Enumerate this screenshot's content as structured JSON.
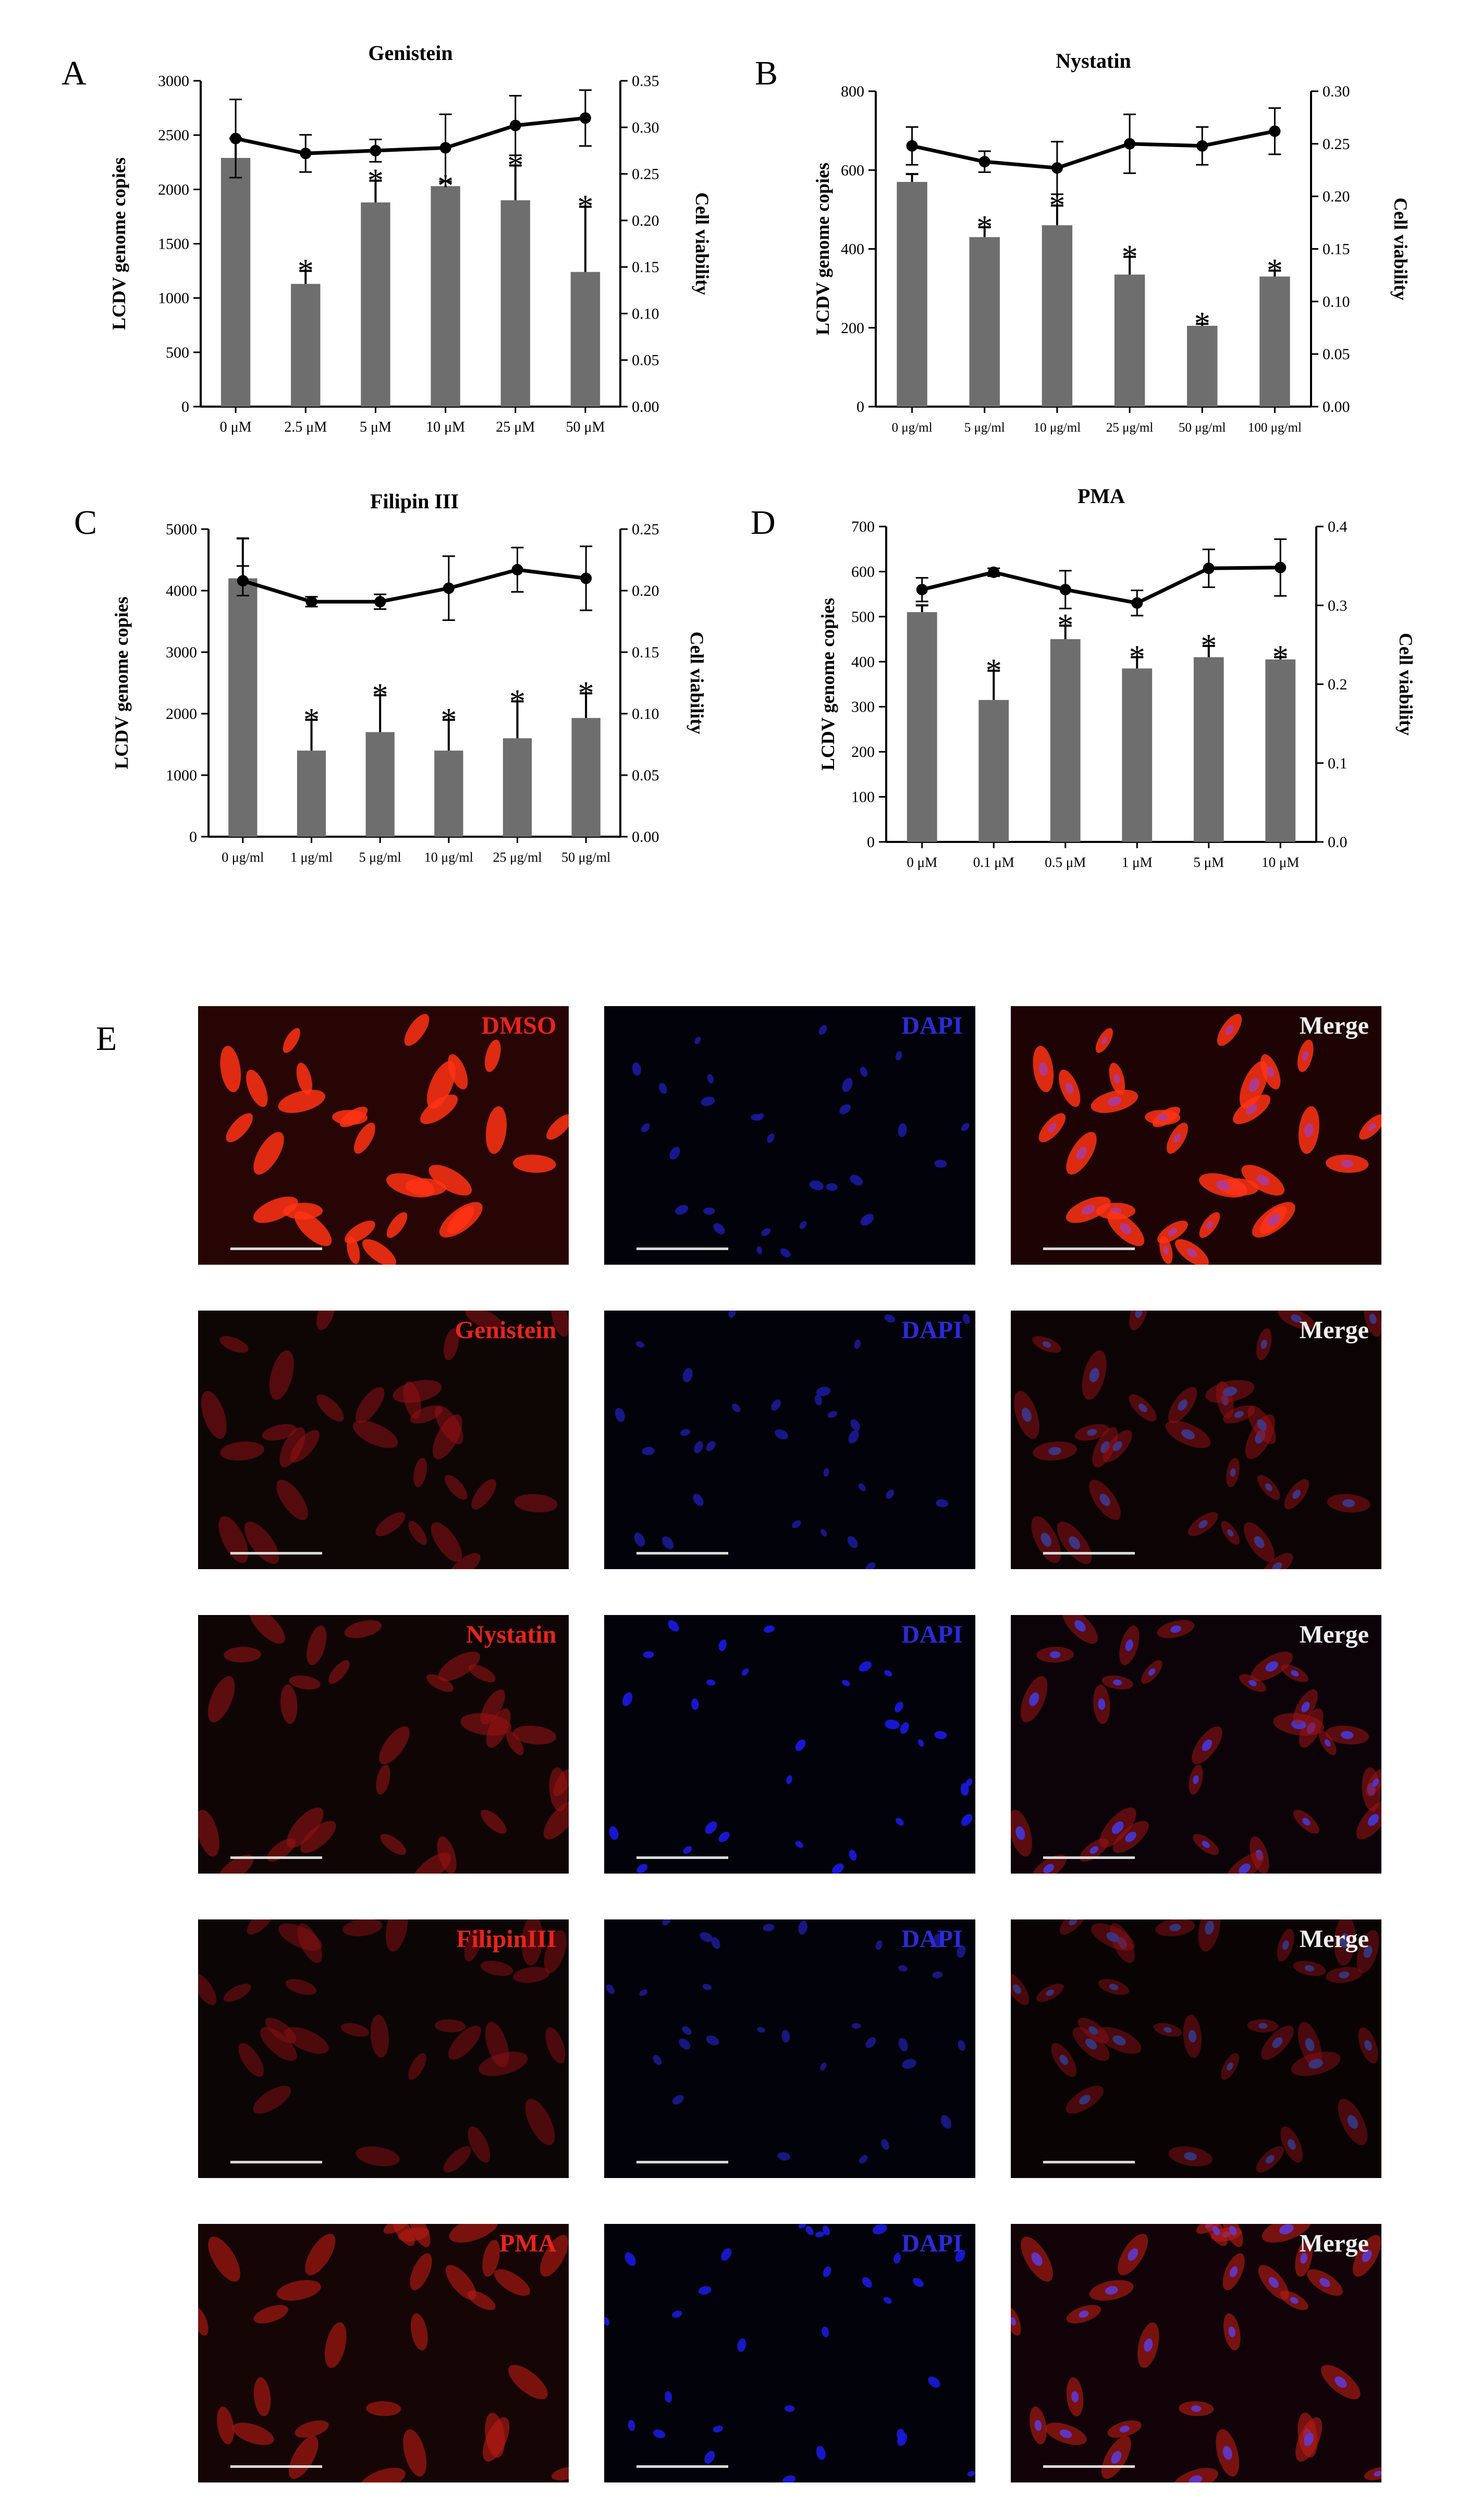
{
  "figure": {
    "panel_e_label": "E"
  },
  "chart_data": [
    {
      "panel": "A",
      "type": "bar",
      "title": "Genistein",
      "ylabel": "LCDV genome copies",
      "y2label": "Cell viability",
      "categories": [
        "0 μM",
        "2.5 μM",
        "5 μM",
        "10 μM",
        "25 μM",
        "50 μM"
      ],
      "ylim": [
        0,
        3000
      ],
      "yticks": [
        "0",
        "500",
        "1000",
        "1500",
        "2000",
        "2500",
        "3000"
      ],
      "y2lim": [
        0,
        0.35
      ],
      "y2ticks": [
        "0.00",
        "0.05",
        "0.10",
        "0.15",
        "0.20",
        "0.25",
        "0.30",
        "0.35"
      ],
      "bars": {
        "values": [
          2290,
          1130,
          1880,
          2030,
          1900,
          1240
        ],
        "err": [
          180,
          120,
          200,
          0,
          320,
          600
        ],
        "significance": [
          "",
          "*",
          "*",
          "*",
          "*",
          "*"
        ]
      },
      "line": {
        "values": [
          0.288,
          0.272,
          0.275,
          0.278,
          0.302,
          0.31
        ],
        "err": [
          0.042,
          0.02,
          0.012,
          0.036,
          0.032,
          0.03
        ]
      },
      "star_colors": [
        "#000000",
        "#000000",
        "#9a9a9a",
        "#9a9a9a",
        "#9a9a9a",
        "#000000"
      ]
    },
    {
      "panel": "B",
      "type": "bar",
      "title": "Nystatin",
      "ylabel": "LCDV genome copies",
      "y2label": "Cell viability",
      "categories": [
        "0 μg/ml",
        "5 μg/ml",
        "10 μg/ml",
        "25 μg/ml",
        "50 μg/ml",
        "100 μg/ml"
      ],
      "ylim": [
        0,
        800
      ],
      "yticks": [
        "0",
        "200",
        "400",
        "600",
        "800"
      ],
      "y2lim": [
        0,
        0.3
      ],
      "y2ticks": [
        "0.00",
        "0.05",
        "0.10",
        "0.15",
        "0.20",
        "0.25",
        "0.30"
      ],
      "bars": {
        "values": [
          570,
          430,
          460,
          335,
          205,
          330
        ],
        "err": [
          20,
          25,
          50,
          45,
          5,
          15
        ],
        "significance": [
          "",
          "*",
          "*",
          "*",
          "*",
          "*"
        ]
      },
      "line": {
        "values": [
          0.248,
          0.233,
          0.227,
          0.25,
          0.248,
          0.262
        ],
        "err": [
          0.018,
          0.01,
          0.025,
          0.028,
          0.018,
          0.022
        ]
      },
      "star_colors": [
        "#000000",
        "#000000",
        "#000000",
        "#000000",
        "#000000",
        "#000000"
      ]
    },
    {
      "panel": "C",
      "type": "bar",
      "title": "Filipin III",
      "ylabel": "LCDV genome copies",
      "y2label": "Cell viability",
      "categories": [
        "0 μg/ml",
        "1 μg/ml",
        "5 μg/ml",
        "10 μg/ml",
        "25 μg/ml",
        "50 μg/ml"
      ],
      "ylim": [
        0,
        5000
      ],
      "yticks": [
        "0",
        "1000",
        "2000",
        "3000",
        "4000",
        "5000"
      ],
      "y2lim": [
        0,
        0.25
      ],
      "y2ticks": [
        "0.00",
        "0.05",
        "0.10",
        "0.15",
        "0.20",
        "0.25"
      ],
      "bars": {
        "values": [
          4200,
          1400,
          1700,
          1400,
          1600,
          1930
        ],
        "err": [
          650,
          500,
          600,
          500,
          600,
          400
        ],
        "significance": [
          "",
          "*",
          "*",
          "*",
          "*",
          "*"
        ]
      },
      "line": {
        "values": [
          0.208,
          0.191,
          0.191,
          0.202,
          0.217,
          0.21
        ],
        "err": [
          0.012,
          0.004,
          0.006,
          0.026,
          0.018,
          0.026
        ]
      },
      "star_colors": [
        "#000000",
        "#000000",
        "#000000",
        "#000000",
        "#000000",
        "#000000"
      ]
    },
    {
      "panel": "D",
      "type": "bar",
      "title": "PMA",
      "ylabel": "LCDV genome copies",
      "y2label": "Cell viability",
      "categories": [
        "0 μM",
        "0.1 μM",
        "0.5 μM",
        "1 μM",
        "5 μM",
        "10 μM"
      ],
      "ylim": [
        0,
        700
      ],
      "yticks": [
        "0",
        "100",
        "200",
        "300",
        "400",
        "500",
        "600",
        "700"
      ],
      "y2lim": [
        0,
        0.4
      ],
      "y2ticks": [
        "0.0",
        "0.1",
        "0.2",
        "0.3",
        "0.4"
      ],
      "bars": {
        "values": [
          510,
          315,
          450,
          385,
          410,
          405
        ],
        "err": [
          15,
          65,
          30,
          25,
          25,
          5
        ],
        "significance": [
          "",
          "*",
          "*",
          "*",
          "*",
          "*"
        ]
      },
      "line": {
        "values": [
          0.32,
          0.342,
          0.32,
          0.303,
          0.347,
          0.348
        ],
        "err": [
          0.015,
          0.005,
          0.024,
          0.016,
          0.024,
          0.036
        ]
      },
      "star_colors": [
        "#000000",
        "#000000",
        "#9a9a9a",
        "#000000",
        "#000000",
        "#000000"
      ]
    }
  ],
  "microscopy": {
    "rows": [
      {
        "treatment": "DMSO",
        "channels": [
          "DMSO",
          "DAPI",
          "Merge"
        ],
        "red_intensity": 1.0,
        "blue_intensity": 0.45
      },
      {
        "treatment": "Genistein",
        "channels": [
          "Genistein",
          "DAPI",
          "Merge"
        ],
        "red_intensity": 0.35,
        "blue_intensity": 0.4
      },
      {
        "treatment": "Nystatin",
        "channels": [
          "Nystatin",
          "DAPI",
          "Merge"
        ],
        "red_intensity": 0.4,
        "blue_intensity": 0.85
      },
      {
        "treatment": "FilipinIII",
        "channels": [
          "FilipinIII",
          "DAPI",
          "Merge"
        ],
        "red_intensity": 0.3,
        "blue_intensity": 0.35
      },
      {
        "treatment": "PMA",
        "channels": [
          "PMA",
          "DAPI",
          "Merge"
        ],
        "red_intensity": 0.55,
        "blue_intensity": 0.8
      }
    ],
    "label_colors": {
      "treatment": "#e8241c",
      "dapi": "#2b2bd8",
      "merge": "#f0f0f0"
    }
  }
}
